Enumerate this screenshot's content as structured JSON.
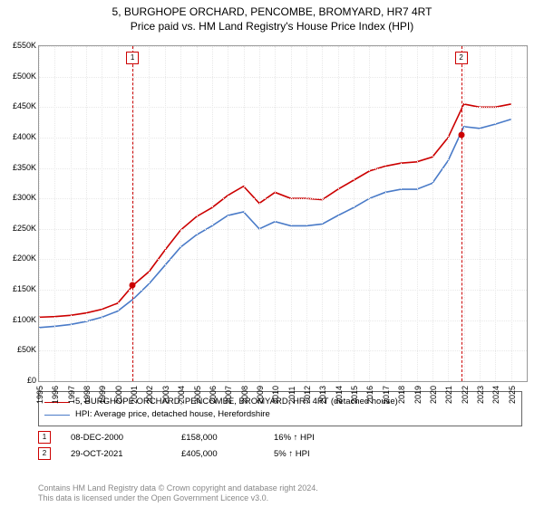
{
  "title_line1": "5, BURGHOPE ORCHARD, PENCOMBE, BROMYARD, HR7 4RT",
  "title_line2": "Price paid vs. HM Land Registry's House Price Index (HPI)",
  "chart": {
    "type": "line",
    "background_color": "#ffffff",
    "grid_color": "#e8e8e8",
    "border_color": "#999999",
    "x_years": [
      1995,
      1996,
      1997,
      1998,
      1999,
      2000,
      2001,
      2002,
      2003,
      2004,
      2005,
      2006,
      2007,
      2008,
      2009,
      2010,
      2011,
      2012,
      2013,
      2014,
      2015,
      2016,
      2017,
      2018,
      2019,
      2020,
      2021,
      2022,
      2023,
      2024,
      2025
    ],
    "xlim": [
      1995,
      2026
    ],
    "ylim": [
      0,
      550000
    ],
    "ytick_step": 50000,
    "yticks_labels": [
      "£0",
      "£50K",
      "£100K",
      "£150K",
      "£200K",
      "£250K",
      "£300K",
      "£350K",
      "£400K",
      "£450K",
      "£500K",
      "£550K"
    ],
    "series_prop": {
      "color": "#cc0000",
      "width": 1.6,
      "values": [
        105000,
        106000,
        108000,
        112000,
        118000,
        128000,
        158000,
        180000,
        215000,
        248000,
        270000,
        285000,
        305000,
        320000,
        292000,
        310000,
        300000,
        300000,
        298000,
        315000,
        330000,
        345000,
        353000,
        358000,
        360000,
        368000,
        400000,
        455000,
        450000,
        450000,
        455000
      ]
    },
    "series_hpi": {
      "color": "#4a7bc8",
      "width": 1.6,
      "values": [
        88000,
        90000,
        93000,
        98000,
        105000,
        115000,
        135000,
        160000,
        190000,
        220000,
        240000,
        255000,
        272000,
        278000,
        250000,
        262000,
        255000,
        255000,
        258000,
        272000,
        285000,
        300000,
        310000,
        315000,
        315000,
        325000,
        362000,
        418000,
        415000,
        422000,
        430000
      ]
    },
    "sales": [
      {
        "n": "1",
        "year": 2000.94,
        "price": 158000,
        "date": "08-DEC-2000",
        "price_str": "£158,000",
        "hpi_delta": "16% ↑ HPI"
      },
      {
        "n": "2",
        "year": 2021.83,
        "price": 405000,
        "date": "29-OCT-2021",
        "price_str": "£405,000",
        "hpi_delta": "5% ↑ HPI"
      }
    ],
    "marker_line_color": "#cc0000",
    "marker_line_dash": "2,2"
  },
  "legend": {
    "prop": "5, BURGHOPE ORCHARD, PENCOMBE, BROMYARD, HR7 4RT (detached house)",
    "hpi": "HPI: Average price, detached house, Herefordshire"
  },
  "copyright_1": "Contains HM Land Registry data © Crown copyright and database right 2024.",
  "copyright_2": "This data is licensed under the Open Government Licence v3.0."
}
